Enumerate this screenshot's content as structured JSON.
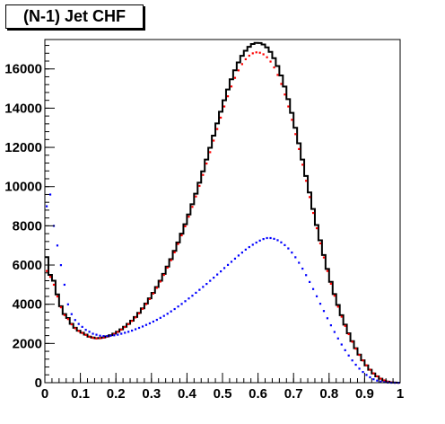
{
  "chart_data": {
    "type": "line",
    "title": "(N-1) Jet CHF",
    "xlim": [
      0,
      1
    ],
    "ylim": [
      0,
      17500
    ],
    "x_ticks": [
      "0",
      "0.1",
      "0.2",
      "0.3",
      "0.4",
      "0.5",
      "0.6",
      "0.7",
      "0.8",
      "0.9",
      "1"
    ],
    "y_ticks": [
      "0",
      "2000",
      "4000",
      "6000",
      "8000",
      "10000",
      "12000",
      "14000",
      "16000"
    ],
    "grid": false,
    "legend": "none",
    "series": [
      {
        "style": "histogram-step",
        "color": "#000000",
        "x": [
          0.0,
          0.01,
          0.02,
          0.03,
          0.04,
          0.05,
          0.06,
          0.07,
          0.08,
          0.09,
          0.1,
          0.11,
          0.12,
          0.13,
          0.14,
          0.15,
          0.16,
          0.17,
          0.18,
          0.19,
          0.2,
          0.21,
          0.22,
          0.23,
          0.24,
          0.25,
          0.26,
          0.27,
          0.28,
          0.29,
          0.3,
          0.31,
          0.32,
          0.33,
          0.34,
          0.35,
          0.36,
          0.37,
          0.38,
          0.39,
          0.4,
          0.41,
          0.42,
          0.43,
          0.44,
          0.45,
          0.46,
          0.47,
          0.48,
          0.49,
          0.5,
          0.51,
          0.52,
          0.53,
          0.54,
          0.55,
          0.56,
          0.57,
          0.58,
          0.59,
          0.6,
          0.61,
          0.62,
          0.63,
          0.64,
          0.65,
          0.66,
          0.67,
          0.68,
          0.69,
          0.7,
          0.71,
          0.72,
          0.73,
          0.74,
          0.75,
          0.76,
          0.77,
          0.78,
          0.79,
          0.8,
          0.81,
          0.82,
          0.83,
          0.84,
          0.85,
          0.86,
          0.87,
          0.88,
          0.89,
          0.9,
          0.91,
          0.92,
          0.93,
          0.94,
          0.95,
          0.96,
          0.97,
          0.98,
          0.99
        ],
        "values": [
          6400,
          5500,
          5200,
          4500,
          3900,
          3500,
          3300,
          3000,
          2800,
          2650,
          2550,
          2450,
          2350,
          2300,
          2270,
          2280,
          2310,
          2360,
          2420,
          2500,
          2600,
          2720,
          2850,
          3000,
          3160,
          3350,
          3560,
          3790,
          4040,
          4300,
          4580,
          4880,
          5200,
          5550,
          5920,
          6300,
          6720,
          7150,
          7600,
          8080,
          8580,
          9100,
          9640,
          10200,
          10780,
          11380,
          11980,
          12600,
          13220,
          13820,
          14400,
          14950,
          15470,
          15930,
          16330,
          16670,
          16930,
          17130,
          17270,
          17330,
          17320,
          17250,
          17100,
          16870,
          16550,
          16150,
          15670,
          15100,
          14460,
          13760,
          13000,
          12210,
          11380,
          10540,
          9700,
          8860,
          8040,
          7260,
          6510,
          5800,
          5140,
          4520,
          3960,
          3440,
          2960,
          2520,
          2120,
          1760,
          1430,
          1140,
          880,
          660,
          470,
          320,
          200,
          110,
          50,
          20,
          5,
          0
        ]
      },
      {
        "style": "red-markers",
        "color": "#ff0000",
        "x": [
          0.005,
          0.015,
          0.025,
          0.035,
          0.045,
          0.055,
          0.065,
          0.075,
          0.085,
          0.095,
          0.105,
          0.115,
          0.125,
          0.135,
          0.145,
          0.155,
          0.165,
          0.175,
          0.185,
          0.195,
          0.205,
          0.215,
          0.225,
          0.235,
          0.245,
          0.255,
          0.265,
          0.275,
          0.285,
          0.295,
          0.305,
          0.315,
          0.325,
          0.335,
          0.345,
          0.355,
          0.365,
          0.375,
          0.385,
          0.395,
          0.405,
          0.415,
          0.425,
          0.435,
          0.445,
          0.455,
          0.465,
          0.475,
          0.485,
          0.495,
          0.505,
          0.515,
          0.525,
          0.535,
          0.545,
          0.555,
          0.565,
          0.575,
          0.585,
          0.595,
          0.605,
          0.615,
          0.625,
          0.635,
          0.645,
          0.655,
          0.665,
          0.675,
          0.685,
          0.695,
          0.705,
          0.715,
          0.725,
          0.735,
          0.745,
          0.755,
          0.765,
          0.775,
          0.785,
          0.795,
          0.805,
          0.815,
          0.825,
          0.835,
          0.845,
          0.855,
          0.865,
          0.875,
          0.885,
          0.895,
          0.905,
          0.915,
          0.925,
          0.935,
          0.945,
          0.955,
          0.965,
          0.975,
          0.985,
          0.995
        ],
        "values": [
          5700,
          5400,
          5000,
          4400,
          3850,
          3450,
          3250,
          2980,
          2780,
          2640,
          2540,
          2440,
          2350,
          2290,
          2260,
          2270,
          2300,
          2350,
          2410,
          2490,
          2590,
          2710,
          2840,
          2990,
          3150,
          3330,
          3540,
          3770,
          4010,
          4270,
          4550,
          4840,
          5160,
          5500,
          5870,
          6250,
          6650,
          7080,
          7520,
          7980,
          8470,
          8970,
          9500,
          10040,
          10600,
          11180,
          11760,
          12350,
          12940,
          13520,
          14090,
          14610,
          15110,
          15550,
          15930,
          16250,
          16500,
          16680,
          16800,
          16850,
          16830,
          16750,
          16600,
          16380,
          16080,
          15700,
          15240,
          14700,
          14090,
          13410,
          12680,
          11920,
          11120,
          10300,
          9470,
          8660,
          7880,
          7110,
          6390,
          5700,
          5050,
          4440,
          3880,
          3370,
          2900,
          2480,
          2090,
          1740,
          1420,
          1140,
          890,
          670,
          480,
          330,
          210,
          120,
          55,
          20,
          5,
          0
        ]
      },
      {
        "style": "blue-markers",
        "color": "#0000ff",
        "x": [
          0.005,
          0.015,
          0.025,
          0.035,
          0.045,
          0.055,
          0.065,
          0.075,
          0.085,
          0.095,
          0.105,
          0.115,
          0.125,
          0.135,
          0.145,
          0.155,
          0.165,
          0.175,
          0.185,
          0.195,
          0.205,
          0.215,
          0.225,
          0.235,
          0.245,
          0.255,
          0.265,
          0.275,
          0.285,
          0.295,
          0.305,
          0.315,
          0.325,
          0.335,
          0.345,
          0.355,
          0.365,
          0.375,
          0.385,
          0.395,
          0.405,
          0.415,
          0.425,
          0.435,
          0.445,
          0.455,
          0.465,
          0.475,
          0.485,
          0.495,
          0.505,
          0.515,
          0.525,
          0.535,
          0.545,
          0.555,
          0.565,
          0.575,
          0.585,
          0.595,
          0.605,
          0.615,
          0.625,
          0.635,
          0.645,
          0.655,
          0.665,
          0.675,
          0.685,
          0.695,
          0.705,
          0.715,
          0.725,
          0.735,
          0.745,
          0.755,
          0.765,
          0.775,
          0.785,
          0.795,
          0.805,
          0.815,
          0.825,
          0.835,
          0.845,
          0.855,
          0.865,
          0.875,
          0.885,
          0.895,
          0.905,
          0.915,
          0.925,
          0.935,
          0.945,
          0.955,
          0.965,
          0.975,
          0.985,
          0.995
        ],
        "values": [
          9000,
          9600,
          8000,
          7000,
          6000,
          5000,
          4000,
          3500,
          3200,
          3000,
          2850,
          2700,
          2600,
          2500,
          2450,
          2400,
          2380,
          2380,
          2400,
          2420,
          2450,
          2500,
          2550,
          2600,
          2660,
          2730,
          2800,
          2870,
          2950,
          3030,
          3120,
          3210,
          3310,
          3410,
          3520,
          3640,
          3760,
          3890,
          4020,
          4160,
          4300,
          4440,
          4590,
          4740,
          4890,
          5040,
          5200,
          5360,
          5520,
          5680,
          5850,
          6010,
          6170,
          6330,
          6490,
          6640,
          6790,
          6920,
          7040,
          7150,
          7250,
          7330,
          7380,
          7380,
          7340,
          7270,
          7160,
          7020,
          6850,
          6640,
          6400,
          6120,
          5820,
          5490,
          5140,
          4780,
          4410,
          4030,
          3660,
          3290,
          2930,
          2590,
          2260,
          1950,
          1660,
          1390,
          1140,
          920,
          720,
          550,
          400,
          280,
          180,
          110,
          60,
          30,
          12,
          4,
          1,
          0
        ]
      }
    ]
  }
}
